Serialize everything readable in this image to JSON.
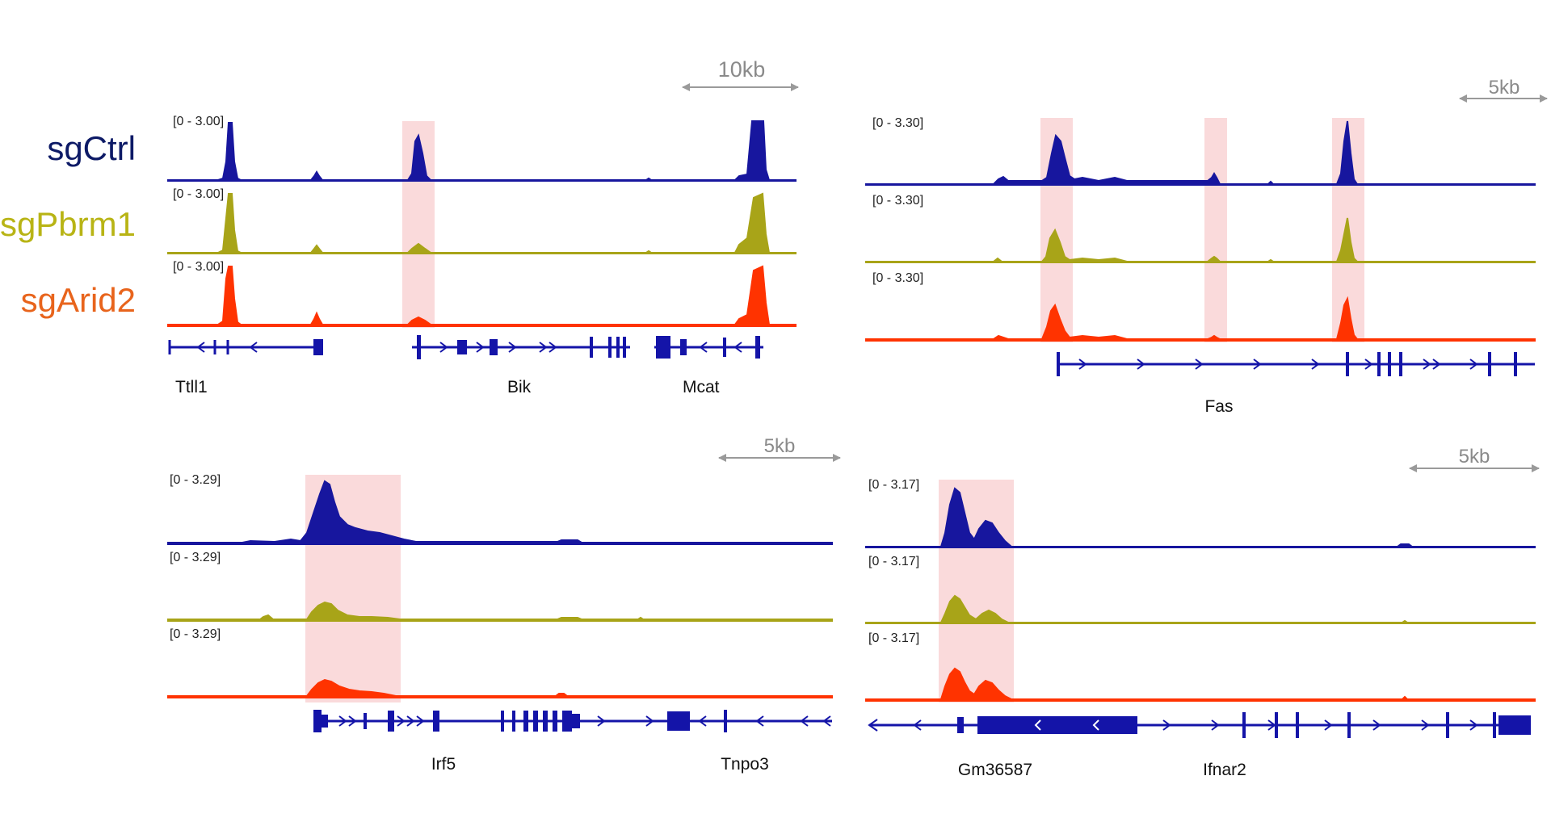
{
  "colors": {
    "sgCtrl": "#17169e",
    "sgPbrm1": "#a8a418",
    "sgArid2": "#ff3300",
    "gene": "#1414a8",
    "highlight": "#fadadb",
    "scalebar": "#9a9a9a"
  },
  "legend": [
    {
      "label": "sgCtrl",
      "color": "#0d1a66"
    },
    {
      "label": "sgPbrm1",
      "color": "#b8b415"
    },
    {
      "label": "sgArid2",
      "color": "#e8641c"
    }
  ],
  "panels": [
    {
      "id": "ttll1-bik-mcat",
      "scale_label": "10kb",
      "range_labels": [
        "[0 - 3.00]",
        "[0 - 3.00]",
        "[0 - 3.00]"
      ],
      "gene_labels": [
        "Ttll1",
        "Bik",
        "Mcat"
      ]
    },
    {
      "id": "fas",
      "scale_label": "5kb",
      "range_labels": [
        "[0 - 3.30]",
        "[0 - 3.30]",
        "[0 - 3.30]"
      ],
      "gene_labels": [
        "Fas"
      ]
    },
    {
      "id": "irf5-tnpo3",
      "scale_label": "5kb",
      "range_labels": [
        "[0 - 3.29]",
        "[0 - 3.29]",
        "[0 - 3.29]"
      ],
      "gene_labels": [
        "Irf5",
        "Tnpo3"
      ]
    },
    {
      "id": "gm36587-ifnar2",
      "scale_label": "5kb",
      "range_labels": [
        "[0 - 3.17]",
        "[0 - 3.17]",
        "[0 - 3.17]"
      ],
      "gene_labels": [
        "Gm36587",
        "Ifnar2"
      ]
    }
  ]
}
